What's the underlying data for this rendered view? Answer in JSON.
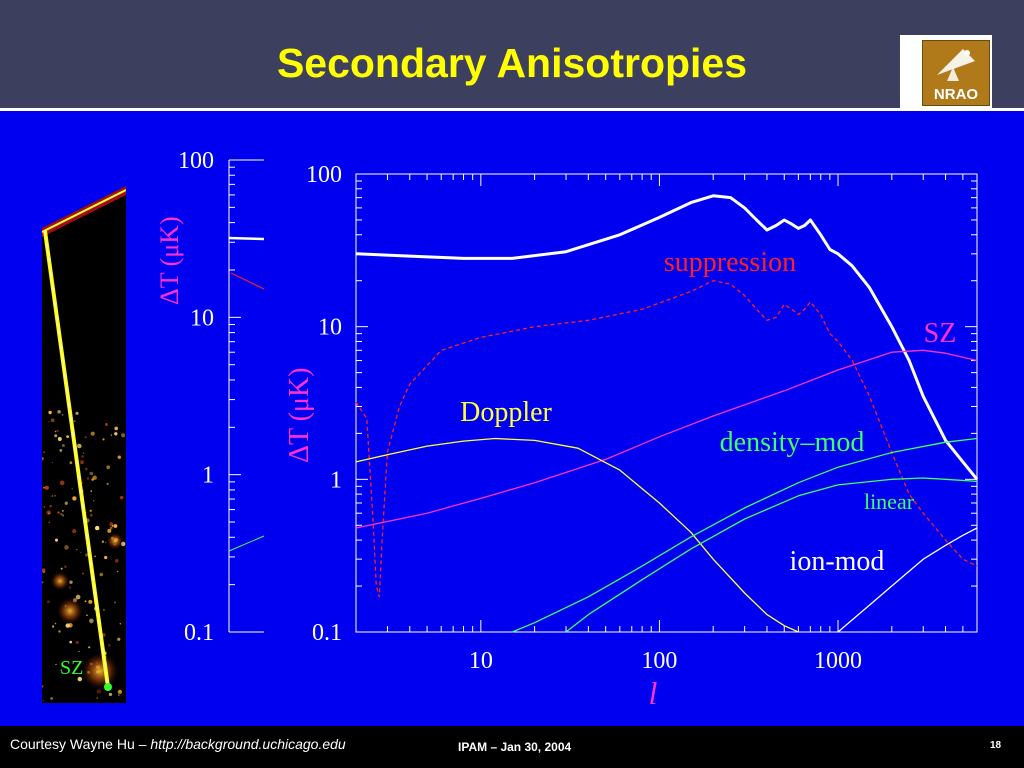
{
  "slide": {
    "title": "Secondary Anisotropies",
    "logo_text": "NRAO",
    "footer": {
      "courtesy": "Courtesy Wayne Hu – ",
      "courtesy_url": "http://background.uchicago.edu",
      "conference": "IPAM – Jan 30, 2004",
      "slide_number": "18"
    }
  },
  "colors": {
    "background": "#0000f0",
    "header": "#3d3f5f",
    "title": "#ffff00",
    "total": "#ffffff",
    "suppression": "#ff2020",
    "sz": "#ff30d0",
    "doppler": "#ffff40",
    "density_mod": "#40ff60",
    "ion_mod": "#ffffff",
    "axis_label": "#ff30d0"
  },
  "left_image": {
    "label": "SZ",
    "icon": "simulation-map-icon"
  },
  "chart_data": [
    {
      "type": "line",
      "xscale": "log",
      "yscale": "log",
      "xlim": [
        2,
        6000
      ],
      "ylim": [
        0.1,
        100
      ],
      "xlabel": "l",
      "ylabel": "ΔT (μK)",
      "x_ticks": [
        10,
        100,
        1000
      ],
      "x_tick_labels": [
        "10",
        "100",
        "1000"
      ],
      "y_ticks": [
        0.1,
        1,
        10,
        100
      ],
      "y_tick_labels": [
        "0.1",
        "1",
        "10",
        "100"
      ],
      "grid": false,
      "series": [
        {
          "name": "",
          "color_key": "total",
          "style": "solid-thick",
          "x": [
            2,
            4,
            8,
            15,
            30,
            60,
            100,
            150,
            200,
            250,
            300,
            350,
            400,
            450,
            500,
            550,
            600,
            650,
            700,
            800,
            900,
            1000,
            1200,
            1500,
            2000,
            2500,
            3000,
            4000,
            5000,
            6000
          ],
          "y": [
            30,
            29,
            28,
            28,
            31,
            40,
            52,
            65,
            72,
            70,
            60,
            50,
            43,
            46,
            50,
            47,
            44,
            46,
            50,
            40,
            32,
            30,
            25,
            18,
            10,
            6,
            3.5,
            1.8,
            1.3,
            1.0
          ]
        },
        {
          "name": "suppression",
          "color_key": "suppression",
          "style": "dashed",
          "x": [
            2,
            2.3,
            2.5,
            2.6,
            2.7,
            2.8,
            3,
            3.5,
            4,
            6,
            10,
            20,
            40,
            80,
            150,
            200,
            250,
            300,
            350,
            400,
            450,
            500,
            550,
            600,
            650,
            700,
            800,
            900,
            1000,
            1200,
            1500,
            2000,
            2500,
            3000,
            4000,
            5000,
            6000
          ],
          "y": [
            3.2,
            2.5,
            0.5,
            0.2,
            0.17,
            0.4,
            1.5,
            3,
            4.2,
            7,
            8.5,
            10,
            11,
            13,
            17,
            20,
            19,
            16,
            13,
            11,
            11.5,
            14,
            13,
            12,
            13,
            14.5,
            12,
            9,
            8,
            6,
            3.5,
            1.5,
            0.8,
            0.6,
            0.4,
            0.3,
            0.27
          ]
        },
        {
          "name": "SZ",
          "color_key": "sz",
          "style": "solid",
          "x": [
            2,
            5,
            10,
            20,
            50,
            100,
            200,
            500,
            1000,
            2000,
            3000,
            4000,
            5000,
            6000
          ],
          "y": [
            0.48,
            0.6,
            0.75,
            0.95,
            1.35,
            1.9,
            2.6,
            3.8,
            5.2,
            6.8,
            7.0,
            6.7,
            6.3,
            6.0
          ]
        },
        {
          "name": "Doppler",
          "color_key": "doppler",
          "style": "solid",
          "x": [
            2,
            3,
            5,
            8,
            12,
            20,
            35,
            60,
            100,
            150,
            200,
            300,
            400,
            500,
            600
          ],
          "y": [
            1.3,
            1.45,
            1.65,
            1.78,
            1.85,
            1.8,
            1.6,
            1.15,
            0.7,
            0.45,
            0.3,
            0.18,
            0.13,
            0.11,
            0.1
          ]
        },
        {
          "name": "density–mod",
          "color_key": "density_mod",
          "style": "solid",
          "x": [
            15,
            20,
            40,
            80,
            150,
            300,
            600,
            1000,
            2000,
            4000,
            6000
          ],
          "y": [
            0.1,
            0.115,
            0.17,
            0.27,
            0.42,
            0.65,
            0.95,
            1.2,
            1.5,
            1.75,
            1.85
          ]
        },
        {
          "name": "linear",
          "color_key": "density_mod",
          "style": "solid",
          "x": [
            30,
            40,
            80,
            150,
            300,
            600,
            1000,
            2000,
            3000,
            4000,
            6000
          ],
          "y": [
            0.1,
            0.13,
            0.22,
            0.35,
            0.55,
            0.78,
            0.92,
            1.0,
            1.02,
            1.0,
            0.97
          ]
        },
        {
          "name": "ion-mod",
          "color_key": "ion_mod",
          "style": "solid",
          "x": [
            1000,
            1200,
            1500,
            2000,
            2500,
            3000,
            4000,
            5000,
            6000
          ],
          "y": [
            0.1,
            0.12,
            0.15,
            0.2,
            0.25,
            0.3,
            0.37,
            0.43,
            0.48
          ]
        }
      ],
      "annotations": [
        "suppression",
        "SZ",
        "Doppler",
        "density–mod",
        "linear",
        "ion-mod"
      ]
    },
    {
      "type": "line",
      "xscale": "log",
      "yscale": "log",
      "ylim": [
        0.1,
        100
      ],
      "ylabel": "ΔT (μK)",
      "y_ticks": [
        0.1,
        1,
        10,
        100
      ],
      "y_tick_labels": [
        "0.1",
        "1",
        "10",
        "100"
      ],
      "grid": false
    }
  ]
}
